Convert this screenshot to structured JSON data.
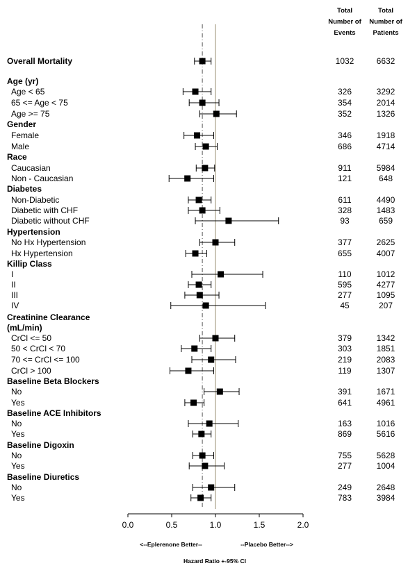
{
  "chart_data": {
    "type": "forest",
    "column_headers": {
      "events": [
        "Total",
        "Number of",
        "Events"
      ],
      "patients": [
        "Total",
        "Number of",
        "Patients"
      ]
    },
    "xlim": [
      0.0,
      2.0
    ],
    "x_ticks": [
      "0.0",
      "0.5",
      "1.0",
      "1.5",
      "2.0"
    ],
    "reference_line": 1.0,
    "overall_hr_line": 0.85,
    "direction_left": "<--Eplerenone Better--",
    "direction_right": "--Placebo Better-->",
    "xlabel": "Hazard Ratio +-95% CI",
    "rows": [
      {
        "label": "Overall Mortality",
        "header": true,
        "hr": 0.85,
        "lo": 0.76,
        "hi": 0.95,
        "events": "1032",
        "patients": "6632"
      },
      {
        "label": "Age (yr)",
        "header": true
      },
      {
        "label": "Age < 65",
        "hr": 0.77,
        "lo": 0.63,
        "hi": 0.95,
        "events": "326",
        "patients": "3292"
      },
      {
        "label": "65 <= Age < 75",
        "hr": 0.85,
        "lo": 0.7,
        "hi": 1.04,
        "events": "354",
        "patients": "2014"
      },
      {
        "label": "Age >= 75",
        "hr": 1.01,
        "lo": 0.82,
        "hi": 1.24,
        "events": "352",
        "patients": "1326"
      },
      {
        "label": "Gender",
        "header": true
      },
      {
        "label": "Female",
        "hr": 0.79,
        "lo": 0.64,
        "hi": 0.98,
        "events": "346",
        "patients": "1918"
      },
      {
        "label": "Male",
        "hr": 0.89,
        "lo": 0.77,
        "hi": 1.02,
        "events": "686",
        "patients": "4714"
      },
      {
        "label": "Race",
        "header": true
      },
      {
        "label": "Caucasian",
        "hr": 0.88,
        "lo": 0.78,
        "hi": 0.99,
        "events": "911",
        "patients": "5984"
      },
      {
        "label": "Non - Caucasian",
        "hr": 0.68,
        "lo": 0.47,
        "hi": 0.98,
        "events": "121",
        "patients": "648"
      },
      {
        "label": "Diabetes",
        "header": true
      },
      {
        "label": "Non-Diabetic",
        "hr": 0.81,
        "lo": 0.69,
        "hi": 0.95,
        "events": "611",
        "patients": "4490"
      },
      {
        "label": "Diabetic with CHF",
        "hr": 0.85,
        "lo": 0.69,
        "hi": 1.05,
        "events": "328",
        "patients": "1483"
      },
      {
        "label": "Diabetic without CHF",
        "hr": 1.15,
        "lo": 0.77,
        "hi": 1.72,
        "events": "93",
        "patients": "659"
      },
      {
        "label": "Hypertension",
        "header": true
      },
      {
        "label": "No Hx Hypertension",
        "hr": 1.0,
        "lo": 0.82,
        "hi": 1.22,
        "events": "377",
        "patients": "2625"
      },
      {
        "label": "Hx Hypertension",
        "hr": 0.77,
        "lo": 0.66,
        "hi": 0.9,
        "events": "655",
        "patients": "4007"
      },
      {
        "label": "Killip Class",
        "header": true
      },
      {
        "label": "I",
        "hr": 1.06,
        "lo": 0.73,
        "hi": 1.54,
        "events": "110",
        "patients": "1012"
      },
      {
        "label": "II",
        "hr": 0.81,
        "lo": 0.69,
        "hi": 0.95,
        "events": "595",
        "patients": "4277"
      },
      {
        "label": "III",
        "hr": 0.82,
        "lo": 0.65,
        "hi": 1.04,
        "events": "277",
        "patients": "1095"
      },
      {
        "label": "IV",
        "hr": 0.89,
        "lo": 0.49,
        "hi": 1.57,
        "events": "45",
        "patients": "207"
      },
      {
        "label": "Creatinine Clearance",
        "header": true
      },
      {
        "label": "(mL/min)",
        "header": true
      },
      {
        "label": "CrCl <= 50",
        "hr": 1.0,
        "lo": 0.82,
        "hi": 1.22,
        "events": "379",
        "patients": "1342"
      },
      {
        "label": "50 < CrCl < 70",
        "hr": 0.76,
        "lo": 0.61,
        "hi": 0.95,
        "events": "303",
        "patients": "1851"
      },
      {
        "label": "70 <= CrCl <= 100",
        "hr": 0.95,
        "lo": 0.73,
        "hi": 1.23,
        "events": "219",
        "patients": "2083"
      },
      {
        "label": "CrCl > 100",
        "hr": 0.69,
        "lo": 0.48,
        "hi": 0.98,
        "events": "119",
        "patients": "1307"
      },
      {
        "label": "Baseline Beta Blockers",
        "header": true
      },
      {
        "label": "No",
        "hr": 1.05,
        "lo": 0.87,
        "hi": 1.27,
        "events": "391",
        "patients": "1671"
      },
      {
        "label": "Yes",
        "hr": 0.75,
        "lo": 0.65,
        "hi": 0.87,
        "events": "641",
        "patients": "4961"
      },
      {
        "label": "Baseline ACE Inhibitors",
        "header": true
      },
      {
        "label": "No",
        "hr": 0.93,
        "lo": 0.69,
        "hi": 1.26,
        "events": "163",
        "patients": "1016"
      },
      {
        "label": "Yes",
        "hr": 0.84,
        "lo": 0.74,
        "hi": 0.95,
        "events": "869",
        "patients": "5616"
      },
      {
        "label": "Baseline Digoxin",
        "header": true
      },
      {
        "label": "No",
        "hr": 0.85,
        "lo": 0.74,
        "hi": 0.98,
        "events": "755",
        "patients": "5628"
      },
      {
        "label": "Yes",
        "hr": 0.88,
        "lo": 0.7,
        "hi": 1.1,
        "events": "277",
        "patients": "1004"
      },
      {
        "label": "Baseline Diuretics",
        "header": true
      },
      {
        "label": "No",
        "hr": 0.95,
        "lo": 0.74,
        "hi": 1.22,
        "events": "249",
        "patients": "2648"
      },
      {
        "label": "Yes",
        "hr": 0.83,
        "lo": 0.72,
        "hi": 0.95,
        "events": "783",
        "patients": "3984"
      }
    ]
  }
}
